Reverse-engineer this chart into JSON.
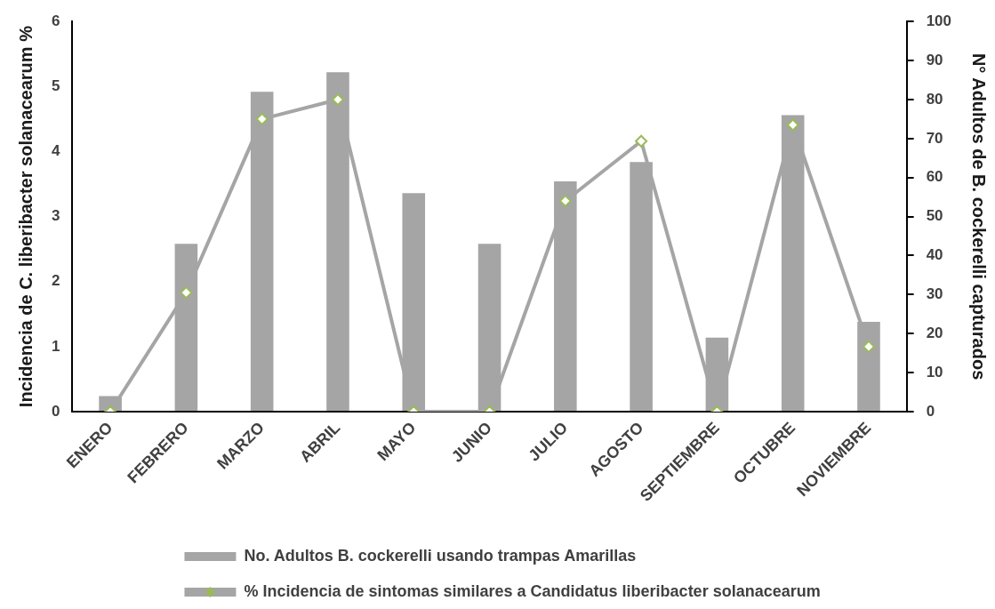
{
  "chart_data": {
    "type": "bar",
    "categories": [
      "ENERO",
      "FEBRERO",
      "MARZO",
      "ABRIL",
      "MAYO",
      "JUNIO",
      "JULIO",
      "AGOSTO",
      "SEPTIEMBRE",
      "OCTUBRE",
      "NOVIEMBRE"
    ],
    "ylabel": "Incidencia de C. liberibacter solanacearum %",
    "y2label": "N° Adultos de B. cockerelli capturados",
    "ylim": [
      0,
      6
    ],
    "yticks": [
      0,
      1,
      2,
      3,
      4,
      5,
      6
    ],
    "y2lim": [
      0,
      100
    ],
    "y2ticks": [
      0,
      10,
      20,
      30,
      40,
      50,
      60,
      70,
      80,
      90,
      100
    ],
    "grid": false,
    "legend": "bottom",
    "marker": "diamond",
    "series": [
      {
        "name": "No. Adultos B. cockerelli usando trampas Amarillas",
        "axis": "y2",
        "color": "#a5a5a5",
        "values": [
          4,
          43,
          82,
          87,
          56,
          43,
          59,
          64,
          19,
          76,
          23
        ]
      },
      {
        "name": "% Incidencia de sintomas similares a Candidatus liberibacter solanacearum",
        "type": "line",
        "color": "#a5a5a5",
        "colors": [
          "#9bbb59",
          "#9bbb59",
          "#9bbb59",
          "#9bbb59",
          "#9bbb59",
          "#9bbb59",
          "#9bbb59",
          "#9bbb59",
          "#9bbb59",
          "#9bbb59",
          "#9bbb59"
        ],
        "values": [
          0,
          1.83,
          4.5,
          4.8,
          0,
          0,
          3.24,
          4.16,
          0,
          4.41,
          1.0
        ]
      }
    ]
  }
}
